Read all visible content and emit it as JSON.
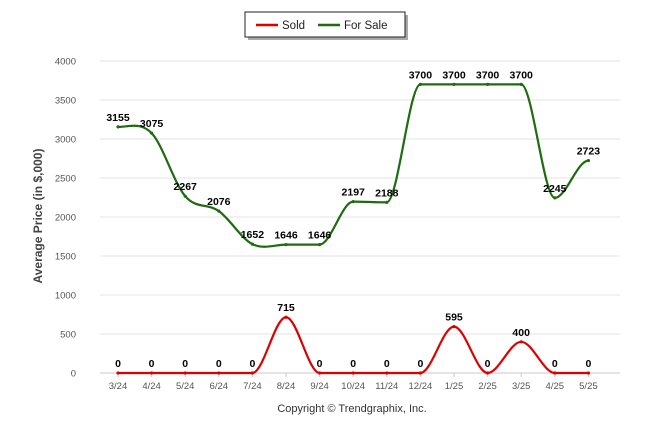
{
  "chart_data": {
    "type": "line",
    "categories": [
      "3/24",
      "4/24",
      "5/24",
      "6/24",
      "7/24",
      "8/24",
      "9/24",
      "10/24",
      "11/24",
      "12/24",
      "1/25",
      "2/25",
      "3/25",
      "4/25",
      "5/25"
    ],
    "series": [
      {
        "name": "Sold",
        "color": "#dd0000",
        "values": [
          0,
          0,
          0,
          0,
          0,
          715,
          0,
          0,
          0,
          0,
          595,
          0,
          400,
          0,
          0
        ]
      },
      {
        "name": "For Sale",
        "color": "#1e6b10",
        "values": [
          3155,
          3075,
          2267,
          2076,
          1652,
          1646,
          1646,
          2197,
          2188,
          3700,
          3700,
          3700,
          3700,
          2245,
          2723
        ]
      }
    ],
    "ylabel": "Average Price (in $,000)",
    "xlabel": "",
    "ylim": [
      0,
      4000
    ],
    "yticks": [
      "0",
      "500",
      "1000",
      "1500",
      "2000",
      "2500",
      "3000",
      "3500",
      "4000"
    ],
    "grid": true,
    "legend_position": "top-center",
    "footer": "Copyright © Trendgraphix, Inc."
  }
}
